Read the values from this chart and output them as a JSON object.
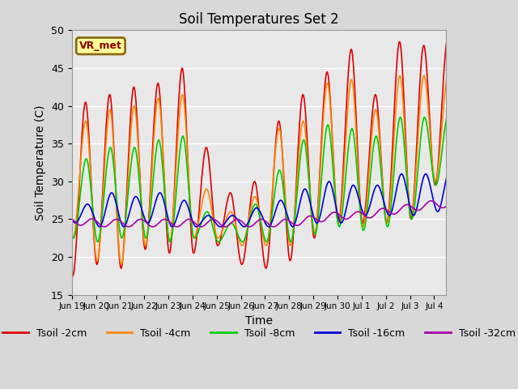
{
  "title": "Soil Temperatures Set 2",
  "xlabel": "Time",
  "ylabel": "Soil Temperature (C)",
  "ylim": [
    15,
    50
  ],
  "background_color": "#d8d8d8",
  "plot_bg_color": "#e8e8e8",
  "annotation_text": "VR_met",
  "series_colors": {
    "Tsoil -2cm": "#dd0000",
    "Tsoil -4cm": "#ff8800",
    "Tsoil -8cm": "#00cc00",
    "Tsoil -16cm": "#0000dd",
    "Tsoil -32cm": "#aa00aa"
  },
  "xtick_labels": [
    "Jun 19",
    "Jun 20",
    "Jun 21",
    "Jun 22",
    "Jun 23",
    "Jun 24",
    "Jun 25",
    "Jun 26",
    "Jun 27",
    "Jun 28",
    "Jun 29",
    "Jun 30",
    "Jul 1",
    "Jul 2",
    "Jul 3",
    "Jul 4"
  ],
  "xtick_positions": [
    0,
    1,
    2,
    3,
    4,
    5,
    6,
    7,
    8,
    9,
    10,
    11,
    12,
    13,
    14,
    15
  ],
  "ytick_positions": [
    15,
    20,
    25,
    30,
    35,
    40,
    45,
    50
  ],
  "grid_color": "#ffffff",
  "grid_linewidth": 1.0,
  "line_linewidth": 1.2,
  "legend_fontsize": 9,
  "figsize": [
    6.4,
    4.8
  ],
  "dpi": 100,
  "peak2cm": [
    40.5,
    41.5,
    42.5,
    43.0,
    45.0,
    34.5,
    28.5,
    30.0,
    38.0,
    41.5,
    44.5,
    47.5,
    41.5,
    48.5,
    48.0,
    49.0
  ],
  "trough2cm": [
    17.5,
    19.0,
    18.5,
    21.0,
    20.5,
    20.5,
    21.5,
    19.0,
    18.5,
    19.5,
    22.5,
    24.5,
    24.5,
    24.5,
    25.0,
    29.5
  ],
  "peak4cm": [
    38.0,
    39.5,
    40.0,
    41.0,
    41.5,
    29.0,
    26.0,
    28.0,
    37.0,
    38.0,
    43.0,
    43.5,
    39.5,
    44.0,
    44.0,
    44.0
  ],
  "trough4cm": [
    22.5,
    19.5,
    19.0,
    21.5,
    22.0,
    22.5,
    22.5,
    21.5,
    21.5,
    21.5,
    23.0,
    24.5,
    24.0,
    24.5,
    25.5,
    30.0
  ],
  "peak8cm": [
    33.0,
    34.5,
    34.5,
    35.5,
    36.0,
    26.0,
    24.5,
    27.0,
    31.5,
    35.5,
    37.5,
    37.0,
    36.0,
    38.5,
    38.5,
    39.0
  ],
  "trough8cm": [
    22.5,
    22.0,
    22.5,
    22.5,
    22.0,
    22.5,
    22.0,
    22.0,
    22.0,
    22.0,
    23.0,
    24.0,
    23.5,
    24.0,
    25.0,
    29.5
  ],
  "peak16cm": [
    27.0,
    28.5,
    28.0,
    28.5,
    27.5,
    25.5,
    25.5,
    26.5,
    27.5,
    29.0,
    30.0,
    29.5,
    29.5,
    31.0,
    31.0,
    31.5
  ],
  "trough16cm": [
    24.5,
    24.0,
    24.0,
    24.5,
    24.0,
    24.0,
    24.0,
    24.0,
    24.0,
    24.0,
    24.5,
    24.5,
    25.5,
    25.5,
    25.5,
    26.0
  ],
  "base32cm": [
    24.8,
    24.5,
    24.5,
    24.5,
    24.5,
    24.5,
    24.5,
    24.5,
    24.5,
    24.5,
    25.0,
    25.5,
    25.5,
    26.0,
    26.5,
    27.0
  ]
}
